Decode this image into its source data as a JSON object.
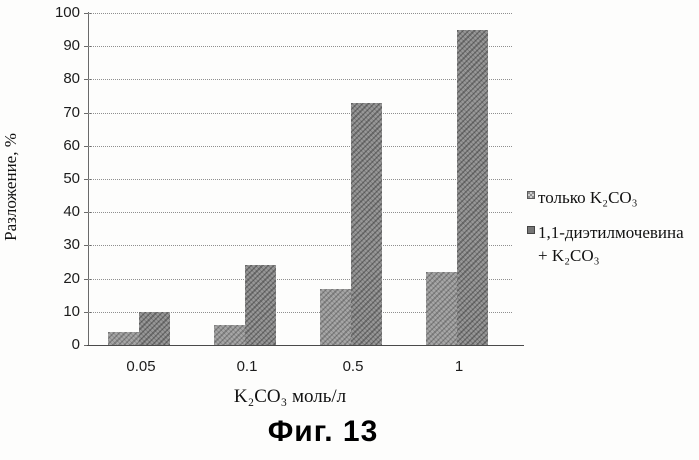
{
  "figure": {
    "caption": "Фиг. 13"
  },
  "chart_data": {
    "type": "bar",
    "title": "",
    "categories": [
      "0.05",
      "0.1",
      "0.5",
      "1"
    ],
    "series": [
      {
        "name": "только K₂CO₃",
        "values": [
          4,
          6,
          17,
          22
        ],
        "color": "#a2a2a2"
      },
      {
        "name": "1,1-диэтилмочевина + K₂CO₃",
        "values": [
          10,
          24,
          73,
          95
        ],
        "color": "#929292"
      }
    ],
    "xlabel": "K₂CO₃ моль/л",
    "ylabel": "Разложение, %",
    "ylim": [
      0,
      100
    ],
    "ytick_step": 10,
    "grid": true,
    "gridline_color": "#8f8f8f",
    "legend_position": "right"
  }
}
